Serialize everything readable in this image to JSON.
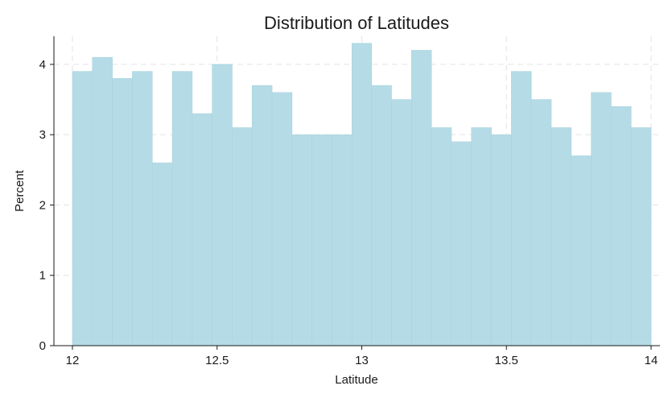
{
  "chart_data": {
    "type": "bar",
    "title": "Distribution of Latitudes",
    "xlabel": "Latitude",
    "ylabel": "Percent",
    "xlim": [
      12,
      14
    ],
    "ylim": [
      0,
      4.4
    ],
    "xticks": [
      12,
      12.5,
      13,
      13.5,
      14
    ],
    "xtick_labels": [
      "12",
      "12.5",
      "13",
      "13.5",
      "14"
    ],
    "yticks": [
      0,
      1,
      2,
      3,
      4
    ],
    "ytick_labels": [
      "0",
      "1",
      "2",
      "3",
      "4"
    ],
    "grid": true,
    "bin_edges": [
      12,
      12.069,
      12.138,
      12.207,
      12.276,
      12.345,
      12.414,
      12.483,
      12.552,
      12.621,
      12.69,
      12.759,
      12.828,
      12.897,
      12.966,
      13.034,
      13.103,
      13.172,
      13.241,
      13.31,
      13.379,
      13.448,
      13.517,
      13.586,
      13.655,
      13.724,
      13.793,
      13.862,
      13.931,
      14
    ],
    "values": [
      3.9,
      4.1,
      3.8,
      3.9,
      2.6,
      3.9,
      3.3,
      4.0,
      3.1,
      3.7,
      3.6,
      3.0,
      3.0,
      3.0,
      4.3,
      3.7,
      3.5,
      4.2,
      3.1,
      2.9,
      3.1,
      3.0,
      3.9,
      3.5,
      3.1,
      2.7,
      3.6,
      3.4,
      3.1
    ],
    "bar_color": "#b5dce6"
  }
}
